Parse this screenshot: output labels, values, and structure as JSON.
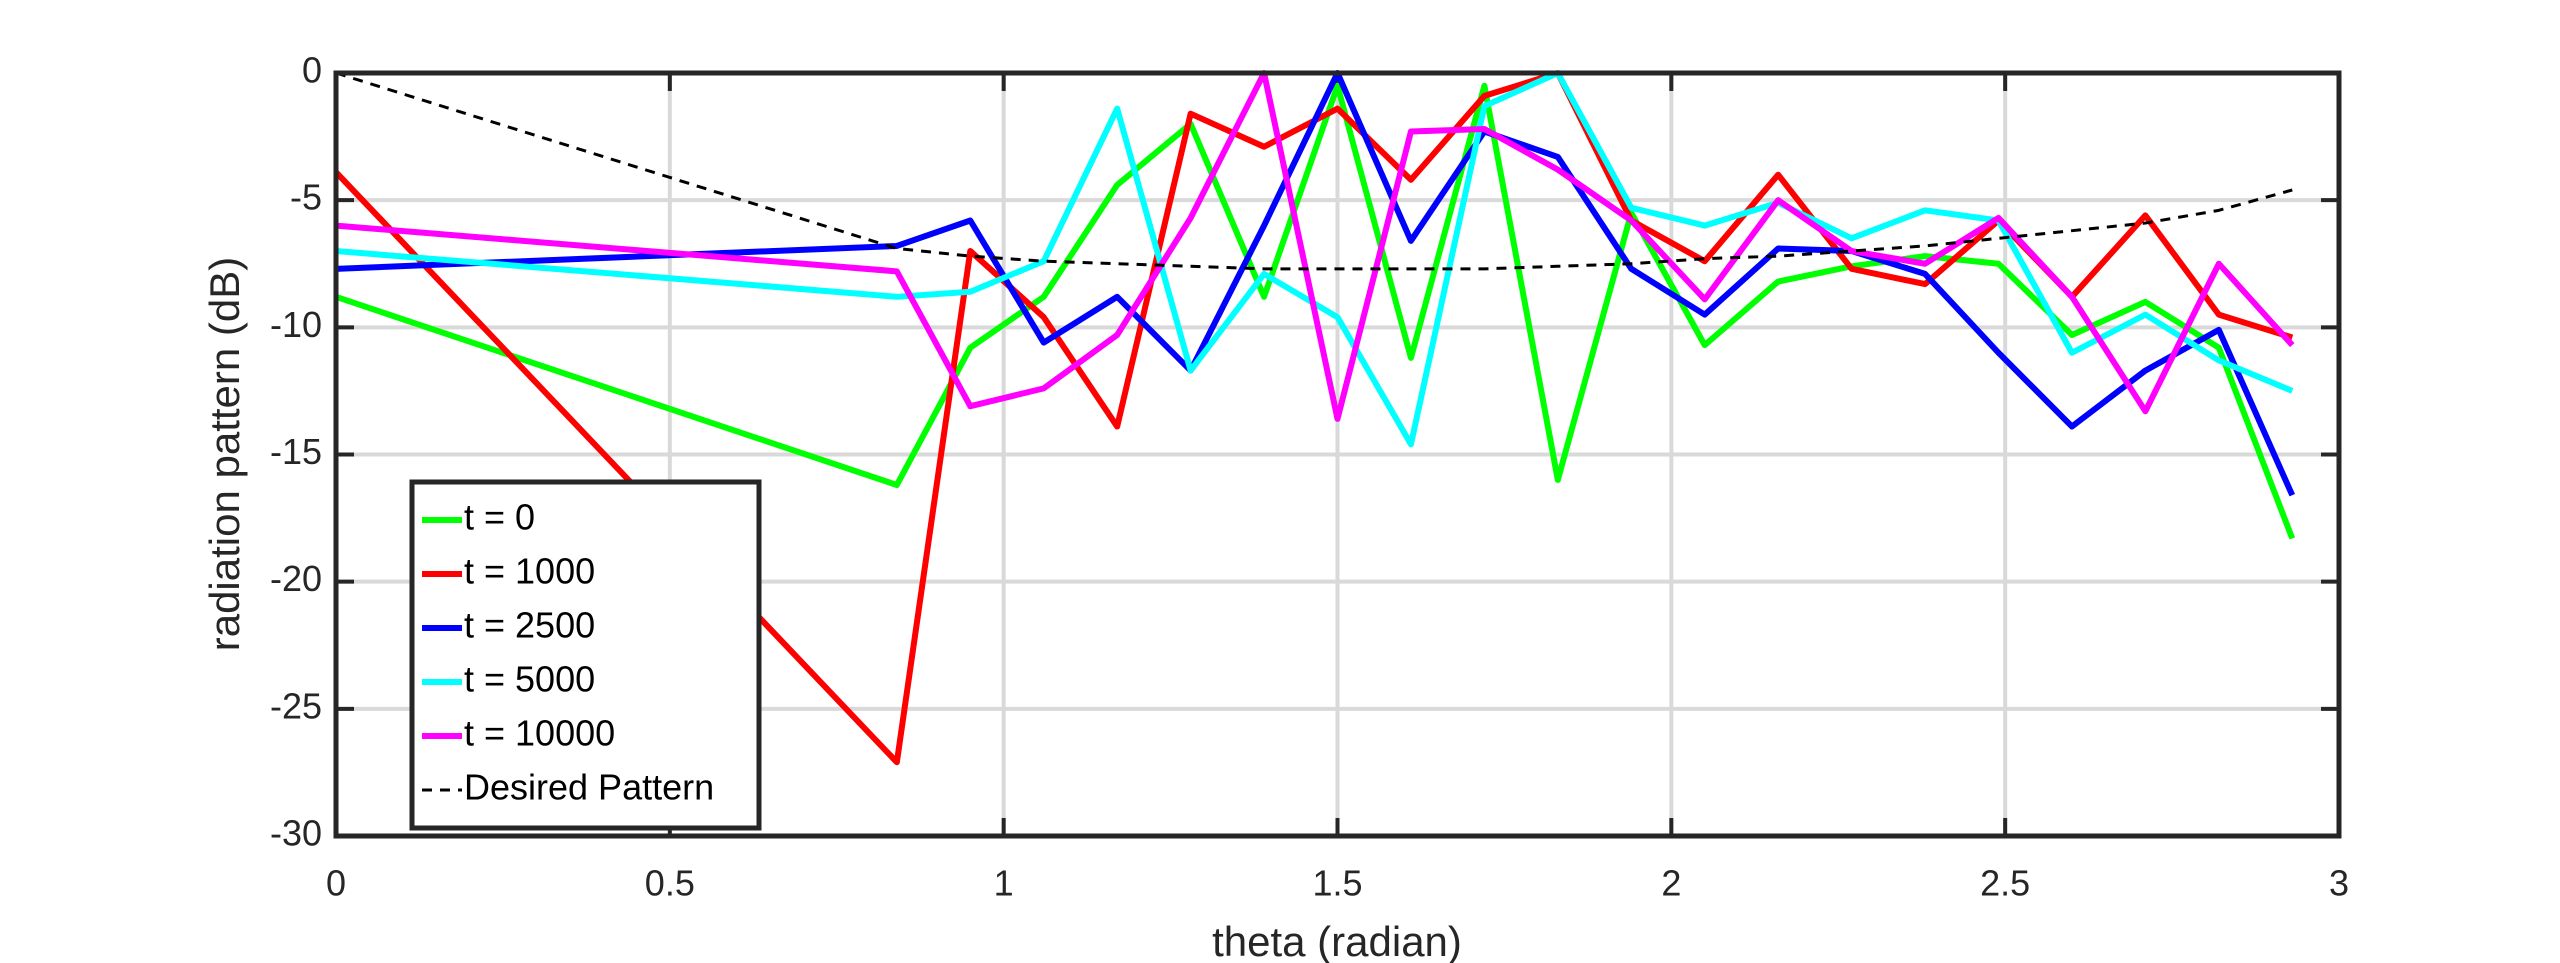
{
  "chart_data": {
    "type": "line",
    "xlabel": "theta (radian)",
    "ylabel": "radiation pattern (dB)",
    "x": [
      0,
      0.84,
      0.95,
      1.06,
      1.17,
      1.28,
      1.39,
      1.5,
      1.61,
      1.72,
      1.83,
      1.94,
      2.05,
      2.16,
      2.27,
      2.38,
      2.49,
      2.6,
      2.71,
      2.82,
      2.93
    ],
    "series": [
      {
        "name": "t = 0",
        "color": "#00ff00",
        "values": [
          -8.8,
          -16.2,
          -10.8,
          -8.8,
          -4.4,
          -2,
          -8.8,
          -0.5,
          -11.2,
          -0.5,
          -16,
          -5.5,
          -10.7,
          -8.2,
          -7.6,
          -7.2,
          -7.5,
          -10.3,
          -9,
          -10.8,
          -18.3
        ]
      },
      {
        "name": "t = 1000",
        "color": "#ff0000",
        "values": [
          -3.9,
          -27.1,
          -7,
          -9.6,
          -13.9,
          -1.6,
          -2.9,
          -1.4,
          -4.2,
          -0.9,
          0,
          -5.8,
          -7.4,
          -4,
          -7.7,
          -8.3,
          -5.8,
          -8.8,
          -5.6,
          -9.5,
          -10.4
        ]
      },
      {
        "name": "t = 2500",
        "color": "#0000ff",
        "values": [
          -7.7,
          -6.8,
          -5.8,
          -10.6,
          -8.8,
          -11.7,
          -6,
          0,
          -6.6,
          -2.3,
          -3.3,
          -7.7,
          -9.5,
          -6.9,
          -7,
          -7.9,
          -11,
          -13.9,
          -11.7,
          -10.1,
          -16.6
        ]
      },
      {
        "name": "t = 5000",
        "color": "#00ffff",
        "values": [
          -7,
          -8.8,
          -8.6,
          -7.4,
          -1.4,
          -11.7,
          -7.9,
          -9.6,
          -14.6,
          -1.3,
          0,
          -5.3,
          -6,
          -5.1,
          -6.5,
          -5.4,
          -5.8,
          -11,
          -9.5,
          -11.3,
          -12.5
        ]
      },
      {
        "name": "t = 10000",
        "color": "#ff00ff",
        "values": [
          -6,
          -7.8,
          -13.1,
          -12.4,
          -10.3,
          -5.7,
          0,
          -13.6,
          -2.3,
          -2.2,
          -3.8,
          -5.8,
          -8.9,
          -5,
          -7,
          -7.5,
          -5.7,
          -8.8,
          -13.3,
          -7.5,
          -10.7
        ]
      },
      {
        "name": "Desired Pattern",
        "color": "#000000",
        "dashed": true,
        "values": [
          0,
          -6.9,
          -7.2,
          -7.4,
          -7.5,
          -7.6,
          -7.7,
          -7.7,
          -7.7,
          -7.7,
          -7.6,
          -7.5,
          -7.3,
          -7.2,
          -7,
          -6.8,
          -6.5,
          -6.2,
          -5.9,
          -5.4,
          -4.6
        ]
      }
    ],
    "xlim": [
      0,
      3
    ],
    "xticks": [
      0,
      0.5,
      1,
      1.5,
      2,
      2.5,
      3
    ],
    "ylim": [
      -30,
      0
    ],
    "yticks": [
      -30,
      -25,
      -20,
      -15,
      -10,
      -5,
      0
    ],
    "grid": true,
    "legend": "lower left"
  }
}
